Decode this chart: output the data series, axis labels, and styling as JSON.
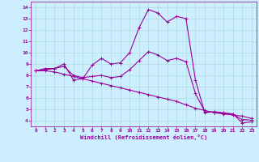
{
  "xlabel": "Windchill (Refroidissement éolien,°C)",
  "ylabel": "",
  "bg_color": "#cceeff",
  "line_color": "#990099",
  "grid_color": "#aadddd",
  "ylim": [
    3.5,
    14.5
  ],
  "xlim": [
    -0.5,
    23.5
  ],
  "yticks": [
    4,
    5,
    6,
    7,
    8,
    9,
    10,
    11,
    12,
    13,
    14
  ],
  "xticks": [
    0,
    1,
    2,
    3,
    4,
    5,
    6,
    7,
    8,
    9,
    10,
    11,
    12,
    13,
    14,
    15,
    16,
    17,
    18,
    19,
    20,
    21,
    22,
    23
  ],
  "series": [
    [
      8.4,
      8.6,
      8.6,
      9.0,
      7.6,
      7.7,
      8.9,
      9.5,
      9.0,
      9.1,
      10.0,
      12.2,
      13.8,
      13.5,
      12.7,
      13.2,
      13.0,
      7.6,
      4.7,
      4.8,
      4.7,
      4.6,
      3.8,
      3.9
    ],
    [
      8.4,
      8.4,
      8.3,
      8.1,
      7.9,
      7.7,
      7.5,
      7.3,
      7.1,
      6.9,
      6.7,
      6.5,
      6.3,
      6.1,
      5.9,
      5.7,
      5.4,
      5.1,
      4.9,
      4.7,
      4.6,
      4.5,
      4.4,
      4.2
    ],
    [
      8.4,
      8.5,
      8.6,
      8.8,
      8.0,
      7.8,
      7.9,
      8.0,
      7.8,
      7.9,
      8.5,
      9.3,
      10.1,
      9.8,
      9.3,
      9.5,
      9.2,
      6.4,
      4.8,
      4.75,
      4.65,
      4.55,
      4.1,
      4.05
    ]
  ],
  "figsize": [
    3.2,
    2.0
  ],
  "dpi": 100
}
